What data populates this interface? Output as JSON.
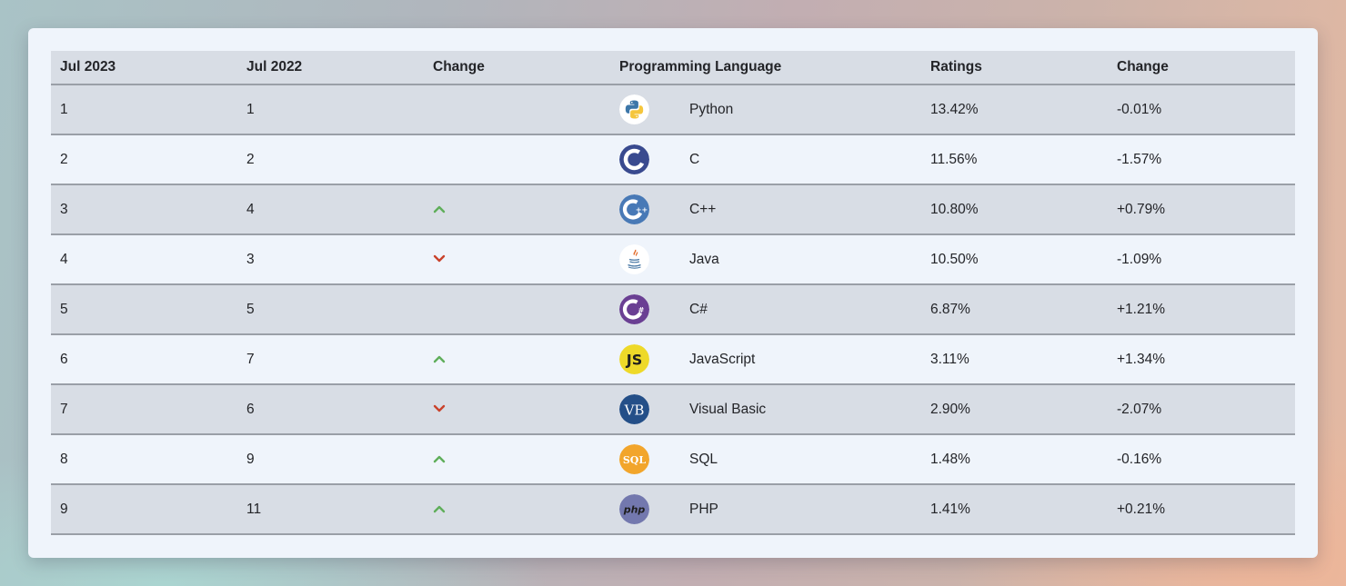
{
  "table": {
    "headers": [
      "Jul 2023",
      "Jul 2022",
      "Change",
      "Programming Language",
      "Ratings",
      "Change"
    ],
    "rows": [
      {
        "rank_2023": "1",
        "rank_2022": "1",
        "trend": "none",
        "icon": "python-logo-icon",
        "language": "Python",
        "rating": "13.42%",
        "change": "-0.01%"
      },
      {
        "rank_2023": "2",
        "rank_2022": "2",
        "trend": "none",
        "icon": "c-logo-icon",
        "language": "C",
        "rating": "11.56%",
        "change": "-1.57%"
      },
      {
        "rank_2023": "3",
        "rank_2022": "4",
        "trend": "up",
        "icon": "cpp-logo-icon",
        "language": "C++",
        "rating": "10.80%",
        "change": "+0.79%"
      },
      {
        "rank_2023": "4",
        "rank_2022": "3",
        "trend": "down",
        "icon": "java-logo-icon",
        "language": "Java",
        "rating": "10.50%",
        "change": "-1.09%"
      },
      {
        "rank_2023": "5",
        "rank_2022": "5",
        "trend": "none",
        "icon": "csharp-logo-icon",
        "language": "C#",
        "rating": "6.87%",
        "change": "+1.21%"
      },
      {
        "rank_2023": "6",
        "rank_2022": "7",
        "trend": "up",
        "icon": "javascript-logo-icon",
        "language": "JavaScript",
        "rating": "3.11%",
        "change": "+1.34%"
      },
      {
        "rank_2023": "7",
        "rank_2022": "6",
        "trend": "down",
        "icon": "visual-basic-logo-icon",
        "language": "Visual Basic",
        "rating": "2.90%",
        "change": "-2.07%"
      },
      {
        "rank_2023": "8",
        "rank_2022": "9",
        "trend": "up",
        "icon": "sql-logo-icon",
        "language": "SQL",
        "rating": "1.48%",
        "change": "-0.16%"
      },
      {
        "rank_2023": "9",
        "rank_2022": "11",
        "trend": "up",
        "icon": "php-logo-icon",
        "language": "PHP",
        "rating": "1.41%",
        "change": "+0.21%"
      }
    ]
  },
  "logos": {
    "js_text": "JS",
    "vb_text": "VB",
    "sql_text": "SQL",
    "php_text": "php",
    "cpp_mark": "++",
    "csharp_mark": "#"
  },
  "colors": {
    "up": "#5fae5a",
    "down": "#c9422b",
    "row_odd": "#d8dde5",
    "row_even": "#eff4fb"
  }
}
